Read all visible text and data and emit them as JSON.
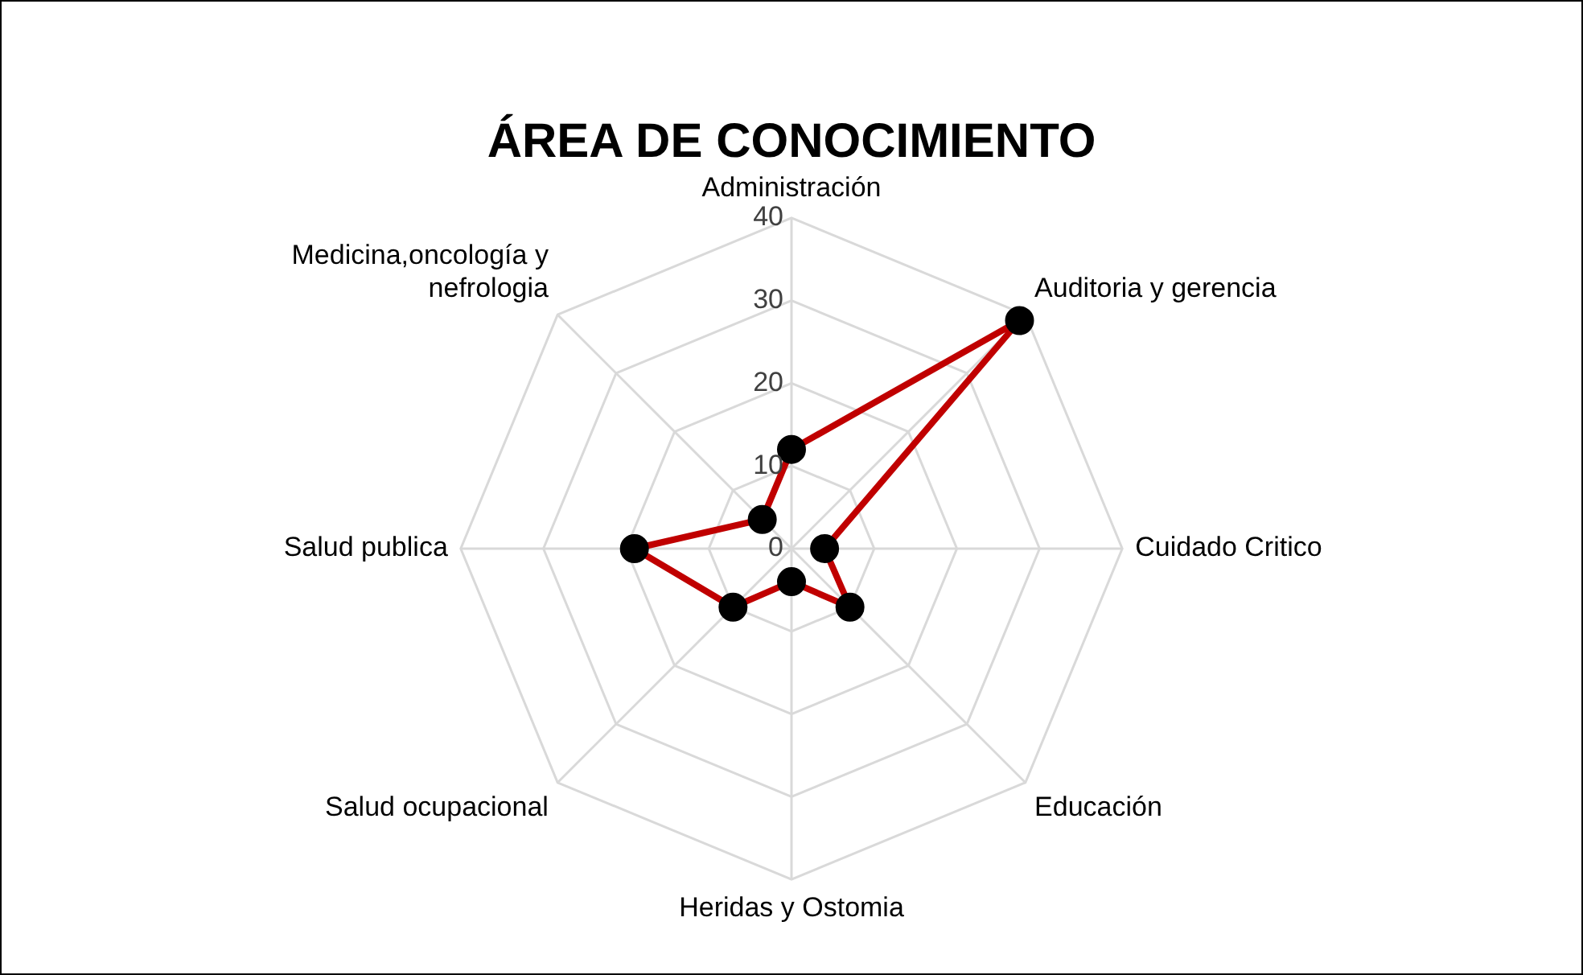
{
  "chart_data": {
    "type": "radar",
    "title": "ÁREA DE CONOCIMIENTO",
    "categories": [
      "Administración",
      "Auditoria y gerencia",
      "Cuidado Critico",
      "Educación",
      "Heridas y Ostomia",
      "Salud ocupacional",
      "Salud publica",
      "Medicina,oncología y nefrologia"
    ],
    "series": [
      {
        "color": "#c00000",
        "values": [
          12,
          39,
          4,
          10,
          4,
          10,
          19,
          5
        ]
      }
    ],
    "ylim": [
      0,
      40
    ],
    "yticks": [
      0,
      10,
      20,
      30,
      40
    ],
    "grid": true,
    "legend": false,
    "marker": "circle",
    "line_style": "solid"
  }
}
